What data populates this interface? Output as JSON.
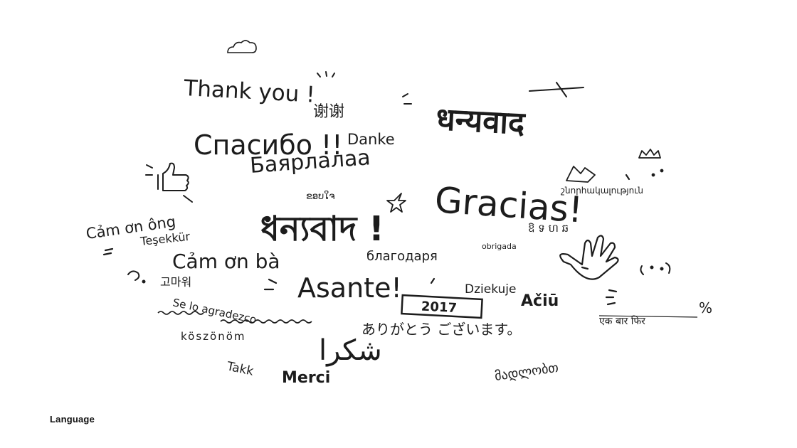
{
  "caption": "Language",
  "colors": {
    "background": "#ffffff",
    "ink": "#1c1c1c"
  },
  "words": [
    {
      "id": "thank-you",
      "text": "Thank you !"
    },
    {
      "id": "xiexie",
      "text": "谢谢"
    },
    {
      "id": "dhanyavad-hindi",
      "text": "धन्यवाद"
    },
    {
      "id": "spasibo",
      "text": "Спасибо !!"
    },
    {
      "id": "danke",
      "text": "Danke"
    },
    {
      "id": "bayarlalaa",
      "text": "Баярлалаа"
    },
    {
      "id": "gracias",
      "text": "Gracias!"
    },
    {
      "id": "armenian",
      "text": "շնորհակալություն"
    },
    {
      "id": "lao-thai",
      "text": "ຂອບໃຈ"
    },
    {
      "id": "cam-on-ong",
      "text": "Cảm ơn ông"
    },
    {
      "id": "tesekkur",
      "text": "Teşekkür"
    },
    {
      "id": "dhonnobad",
      "text": "ধন্যবাদ !"
    },
    {
      "id": "khmer",
      "text": "ឱ ទ ហ ឆ"
    },
    {
      "id": "cam-on-ba",
      "text": "Cảm ơn bà"
    },
    {
      "id": "blagodarya",
      "text": "благодаря"
    },
    {
      "id": "obrigada",
      "text": "obrigada"
    },
    {
      "id": "korean",
      "text": "고마워"
    },
    {
      "id": "asante",
      "text": "Asante!"
    },
    {
      "id": "dziekuje",
      "text": "Dziekuje"
    },
    {
      "id": "aciu",
      "text": "Ačiū"
    },
    {
      "id": "year",
      "text": "2017"
    },
    {
      "id": "se-lo-agradezco",
      "text": "Se lo agradezco"
    },
    {
      "id": "arigato",
      "text": "ありがとう ございます。"
    },
    {
      "id": "ek-baar-phir",
      "text": "एक बार फिर"
    },
    {
      "id": "koszonom",
      "text": "köszönöm"
    },
    {
      "id": "shukran",
      "text": "شكرا"
    },
    {
      "id": "takk",
      "text": "Takk"
    },
    {
      "id": "merci",
      "text": "Merci"
    },
    {
      "id": "georgian",
      "text": "მადლობთ"
    },
    {
      "id": "percent",
      "text": "%"
    }
  ],
  "doodles": [
    "cloud-icon",
    "thumbs-up-icon",
    "hand-icon",
    "crown-icon",
    "star-icon",
    "smiley-icon",
    "cross-icon",
    "arrow-icon"
  ]
}
